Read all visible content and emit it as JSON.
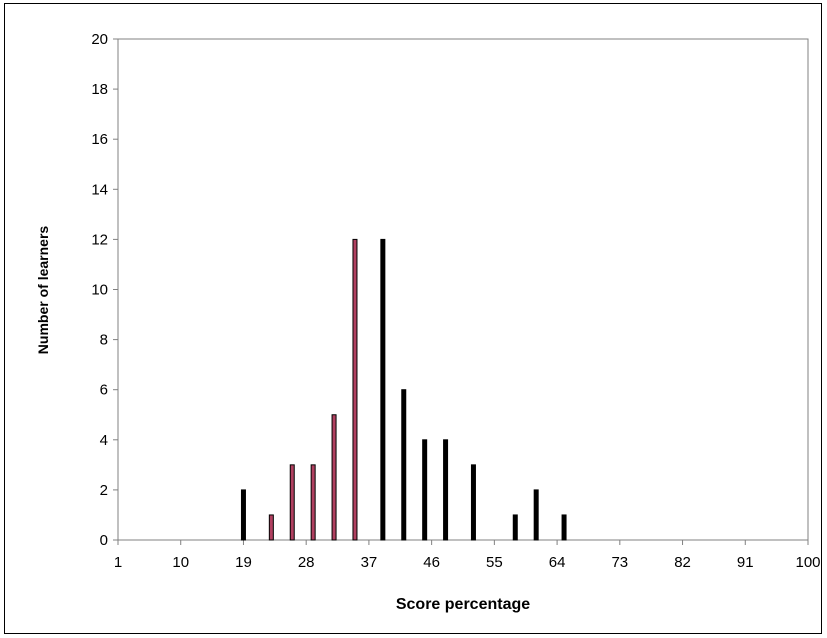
{
  "chart_data": {
    "type": "bar",
    "xlabel": "Score percentage",
    "ylabel": "Number of learners",
    "ylim": [
      0,
      20
    ],
    "y_ticks": [
      0,
      2,
      4,
      6,
      8,
      10,
      12,
      14,
      16,
      18,
      20
    ],
    "x_ticks": [
      1,
      10,
      19,
      28,
      37,
      46,
      55,
      64,
      73,
      82,
      91,
      100
    ],
    "xlim": [
      1,
      100
    ],
    "grid": false,
    "colors": {
      "dark": "#000000",
      "highlight": "#b04060",
      "axis": "#808080"
    },
    "points": [
      {
        "x": 19,
        "y": 2,
        "highlight": false
      },
      {
        "x": 23,
        "y": 1,
        "highlight": true
      },
      {
        "x": 26,
        "y": 3,
        "highlight": true
      },
      {
        "x": 29,
        "y": 3,
        "highlight": true
      },
      {
        "x": 32,
        "y": 5,
        "highlight": true
      },
      {
        "x": 35,
        "y": 12,
        "highlight": true
      },
      {
        "x": 39,
        "y": 12,
        "highlight": false
      },
      {
        "x": 42,
        "y": 6,
        "highlight": false
      },
      {
        "x": 45,
        "y": 4,
        "highlight": false
      },
      {
        "x": 48,
        "y": 4,
        "highlight": false
      },
      {
        "x": 52,
        "y": 3,
        "highlight": false
      },
      {
        "x": 58,
        "y": 1,
        "highlight": false
      },
      {
        "x": 61,
        "y": 2,
        "highlight": false
      },
      {
        "x": 65,
        "y": 1,
        "highlight": false
      }
    ]
  }
}
